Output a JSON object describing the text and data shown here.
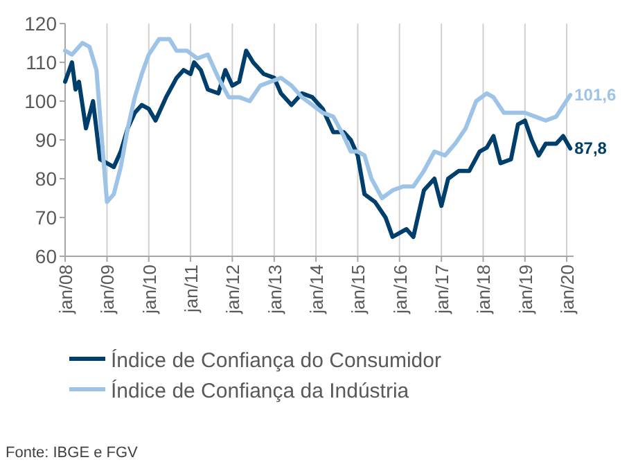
{
  "chart_data": {
    "type": "line",
    "grid": "x",
    "legend": "bottom",
    "annotations": [
      "Fonte: IBGE e FGV"
    ],
    "ylim": [
      60,
      120
    ],
    "yticks": [
      60,
      70,
      80,
      90,
      100,
      110,
      120
    ],
    "xlim": [
      "2008-01",
      "2020-03"
    ],
    "xticks": [
      {
        "value": "2008-01",
        "label": "jan/08"
      },
      {
        "value": "2009-01",
        "label": "jan/09"
      },
      {
        "value": "2010-01",
        "label": "jan/10"
      },
      {
        "value": "2011-01",
        "label": "jan/11"
      },
      {
        "value": "2012-01",
        "label": "jan/12"
      },
      {
        "value": "2013-01",
        "label": "jan/13"
      },
      {
        "value": "2014-01",
        "label": "jan/14"
      },
      {
        "value": "2015-01",
        "label": "jan/15"
      },
      {
        "value": "2016-01",
        "label": "jan/16"
      },
      {
        "value": "2017-01",
        "label": "jan/17"
      },
      {
        "value": "2018-01",
        "label": "jan/18"
      },
      {
        "value": "2019-01",
        "label": "jan/19"
      },
      {
        "value": "2020-01",
        "label": "jan/20"
      }
    ],
    "series": [
      {
        "name": "Índice de Confiança do Consumidor",
        "color": "#003f6b",
        "x": [
          "2008-01",
          "2008-03",
          "2008-04",
          "2008-05",
          "2008-07",
          "2008-09",
          "2008-11",
          "2009-01",
          "2009-03",
          "2009-05",
          "2009-07",
          "2009-09",
          "2009-11",
          "2010-01",
          "2010-03",
          "2010-06",
          "2010-09",
          "2010-11",
          "2011-01",
          "2011-02",
          "2011-04",
          "2011-06",
          "2011-09",
          "2011-11",
          "2012-01",
          "2012-03",
          "2012-05",
          "2012-07",
          "2012-10",
          "2013-01",
          "2013-03",
          "2013-06",
          "2013-09",
          "2013-12",
          "2014-03",
          "2014-06",
          "2014-09",
          "2014-11",
          "2015-01",
          "2015-03",
          "2015-06",
          "2015-09",
          "2015-11",
          "2016-01",
          "2016-03",
          "2016-05",
          "2016-08",
          "2016-11",
          "2017-01",
          "2017-03",
          "2017-06",
          "2017-09",
          "2017-12",
          "2018-02",
          "2018-04",
          "2018-06",
          "2018-09",
          "2018-11",
          "2019-01",
          "2019-03",
          "2019-05",
          "2019-07",
          "2019-10",
          "2019-12",
          "2020-02"
        ],
        "values": [
          105,
          110,
          103,
          105,
          93,
          100,
          85,
          84,
          83,
          87,
          93,
          97,
          99,
          98,
          95,
          101,
          106,
          108,
          107,
          110,
          108,
          103,
          102,
          108,
          104,
          105,
          113,
          110,
          107,
          106,
          102,
          99,
          102,
          101,
          98,
          92,
          92,
          90,
          86,
          76,
          74,
          70,
          65,
          66,
          67,
          65,
          77,
          80,
          73,
          80,
          82,
          82,
          87,
          88,
          91,
          84,
          85,
          94,
          95,
          90,
          86,
          89,
          89,
          91,
          87.8
        ],
        "value_labels": [
          null,
          null,
          null,
          null,
          null,
          null,
          null,
          null,
          null,
          null,
          null,
          null,
          null,
          null,
          null,
          null,
          null,
          null,
          null,
          null,
          null,
          null,
          null,
          null,
          null,
          null,
          null,
          null,
          null,
          null,
          null,
          null,
          null,
          null,
          null,
          null,
          null,
          null,
          null,
          null,
          null,
          null,
          null,
          null,
          null,
          null,
          null,
          null,
          null,
          null,
          null,
          null,
          null,
          null,
          null,
          null,
          null,
          null,
          null,
          null,
          null,
          null,
          null,
          null,
          "87,8"
        ]
      },
      {
        "name": "Índice de Confiança da Indústria",
        "color": "#9dc3e6",
        "x": [
          "2008-01",
          "2008-03",
          "2008-06",
          "2008-08",
          "2008-10",
          "2008-12",
          "2009-01",
          "2009-03",
          "2009-05",
          "2009-07",
          "2009-09",
          "2009-11",
          "2010-01",
          "2010-04",
          "2010-07",
          "2010-09",
          "2010-12",
          "2011-03",
          "2011-06",
          "2011-09",
          "2011-12",
          "2012-03",
          "2012-06",
          "2012-09",
          "2012-12",
          "2013-03",
          "2013-06",
          "2013-09",
          "2013-12",
          "2014-03",
          "2014-06",
          "2014-09",
          "2014-11",
          "2015-01",
          "2015-03",
          "2015-05",
          "2015-08",
          "2015-11",
          "2016-02",
          "2016-05",
          "2016-08",
          "2016-11",
          "2017-02",
          "2017-05",
          "2017-08",
          "2017-11",
          "2018-02",
          "2018-04",
          "2018-07",
          "2018-10",
          "2019-01",
          "2019-04",
          "2019-07",
          "2019-10",
          "2020-02"
        ],
        "values": [
          113,
          112,
          115,
          114,
          108,
          85,
          74,
          76,
          83,
          93,
          101,
          107,
          112,
          116,
          116,
          113,
          113,
          111,
          112,
          106,
          101,
          101,
          100,
          104,
          105,
          106,
          104,
          101,
          99,
          97,
          96,
          91,
          87,
          87,
          86,
          80,
          75,
          77,
          78,
          78,
          82,
          87,
          86,
          89,
          93,
          100,
          102,
          101,
          97,
          97,
          97,
          96,
          95,
          96,
          101.6
        ],
        "value_labels": [
          null,
          null,
          null,
          null,
          null,
          null,
          null,
          null,
          null,
          null,
          null,
          null,
          null,
          null,
          null,
          null,
          null,
          null,
          null,
          null,
          null,
          null,
          null,
          null,
          null,
          null,
          null,
          null,
          null,
          null,
          null,
          null,
          null,
          null,
          null,
          null,
          null,
          null,
          null,
          null,
          null,
          null,
          null,
          null,
          null,
          null,
          null,
          null,
          null,
          null,
          null,
          null,
          null,
          null,
          "101,6"
        ]
      }
    ]
  }
}
